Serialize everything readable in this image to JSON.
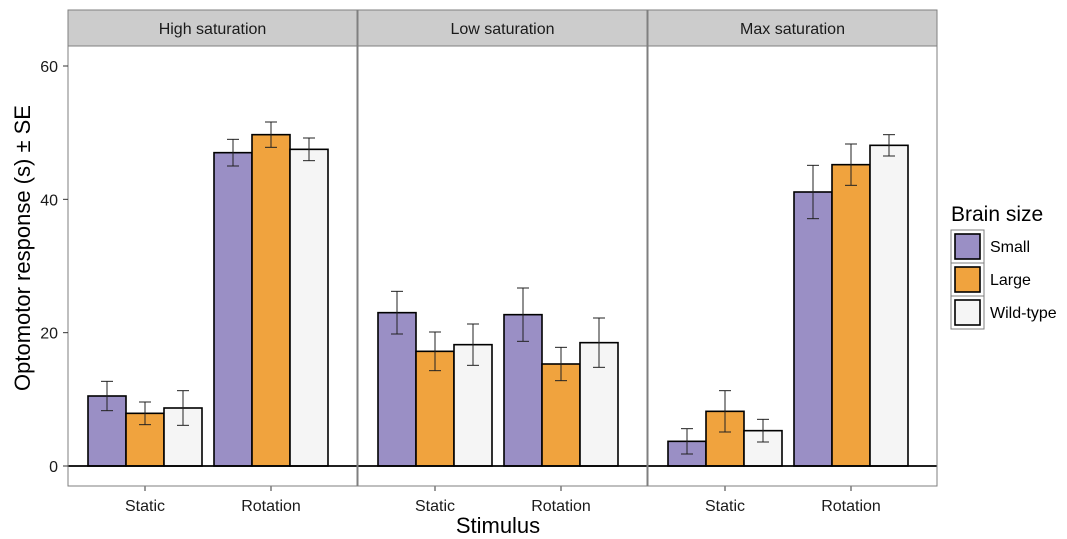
{
  "chart_data": {
    "type": "bar",
    "ylabel": "Optomotor response (s) ± SE",
    "xlabel": "Stimulus",
    "ylim": [
      -3,
      63
    ],
    "yticks": [
      0,
      20,
      40,
      60
    ],
    "categories": [
      "Static",
      "Rotation"
    ],
    "facets": [
      {
        "label": "High saturation",
        "series": [
          {
            "name": "Small",
            "values": [
              10.5,
              47.0
            ],
            "se": [
              2.2,
              2.0
            ]
          },
          {
            "name": "Large",
            "values": [
              7.9,
              49.7
            ],
            "se": [
              1.7,
              1.9
            ]
          },
          {
            "name": "Wild-type",
            "values": [
              8.7,
              47.5
            ],
            "se": [
              2.6,
              1.7
            ]
          }
        ]
      },
      {
        "label": "Low saturation",
        "series": [
          {
            "name": "Small",
            "values": [
              23.0,
              22.7
            ],
            "se": [
              3.2,
              4.0
            ]
          },
          {
            "name": "Large",
            "values": [
              17.2,
              15.3
            ],
            "se": [
              2.9,
              2.5
            ]
          },
          {
            "name": "Wild-type",
            "values": [
              18.2,
              18.5
            ],
            "se": [
              3.1,
              3.7
            ]
          }
        ]
      },
      {
        "label": "Max saturation",
        "series": [
          {
            "name": "Small",
            "values": [
              3.7,
              41.1
            ],
            "se": [
              1.9,
              4.0
            ]
          },
          {
            "name": "Large",
            "values": [
              8.2,
              45.2
            ],
            "se": [
              3.1,
              3.1
            ]
          },
          {
            "name": "Wild-type",
            "values": [
              5.3,
              48.1
            ],
            "se": [
              1.7,
              1.6
            ]
          }
        ]
      }
    ],
    "legend": {
      "title": "Brain size",
      "position": "right",
      "entries": [
        {
          "name": "Small",
          "color": "#9a8fc5"
        },
        {
          "name": "Large",
          "color": "#f0a33e"
        },
        {
          "name": "Wild-type",
          "color": "#f5f5f5"
        }
      ]
    },
    "grid": false
  }
}
